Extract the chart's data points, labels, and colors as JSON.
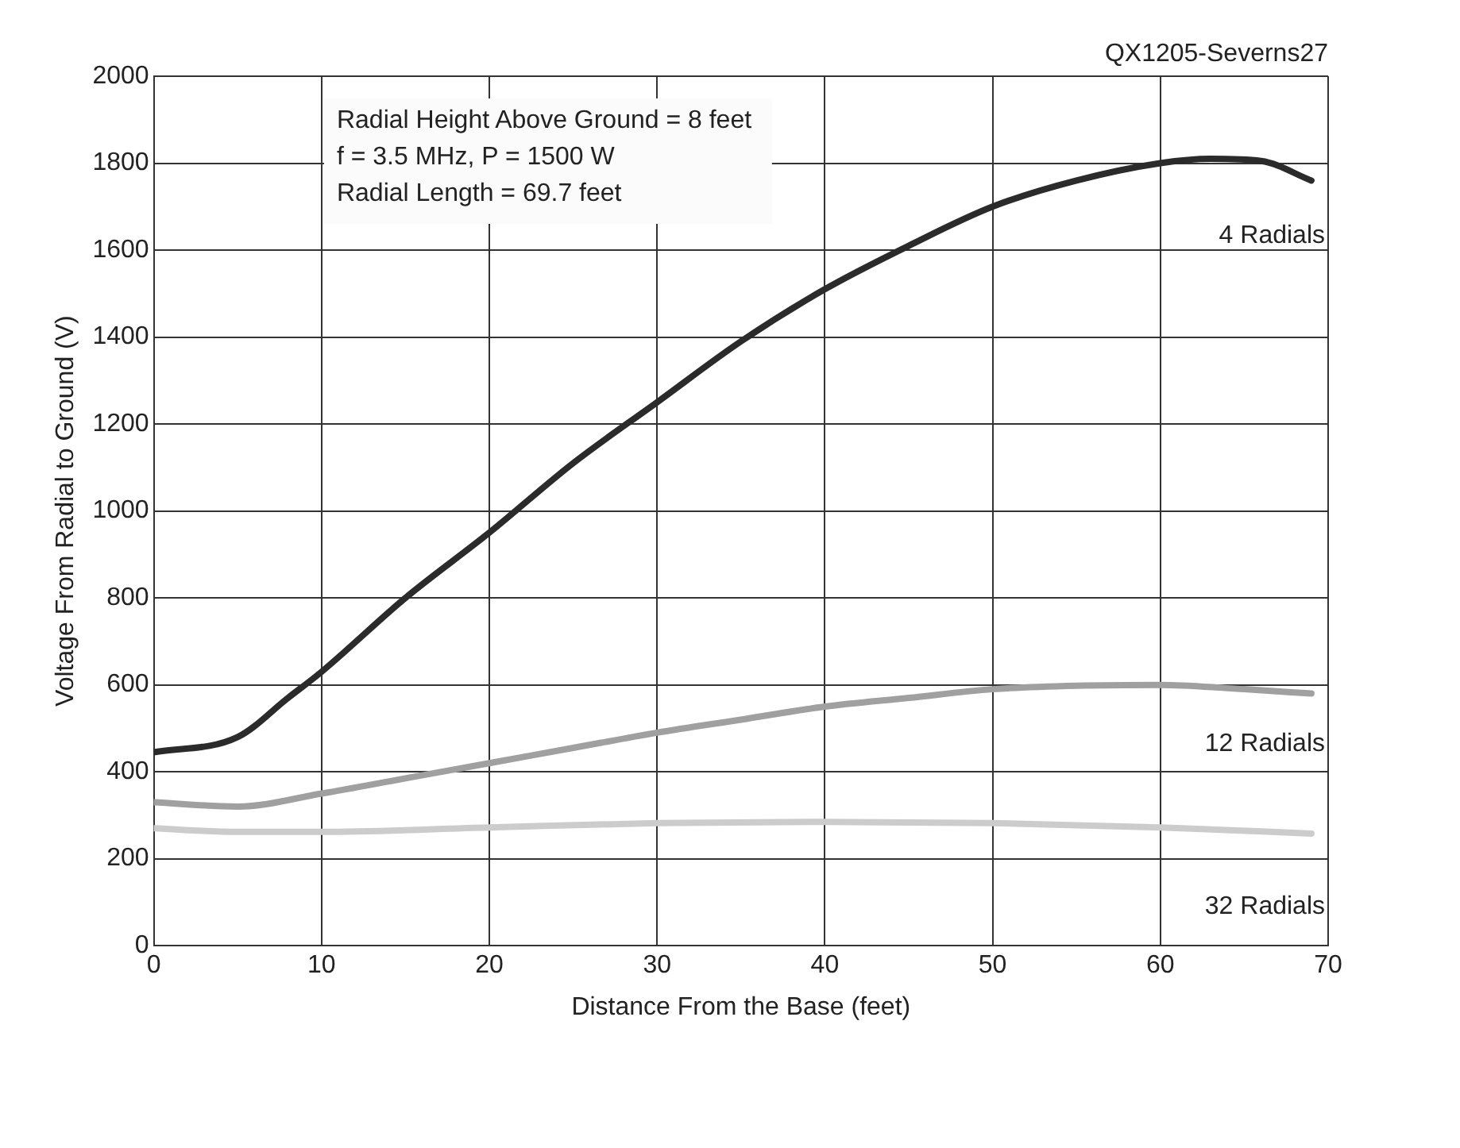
{
  "chart_data": {
    "type": "line",
    "xlabel": "Distance From the Base (feet)",
    "ylabel": "Voltage From Radial to Ground (V)",
    "annotations": [
      "QX1205-Severns27",
      "Radial Height Above Ground = 8 feet",
      "f = 3.5 MHz, P = 1500 W",
      "Radial Length = 69.7 feet"
    ],
    "series": [
      {
        "name": "4 Radials",
        "color": "#2b2b2b",
        "x": [
          0,
          5,
          8,
          10,
          15,
          20,
          25,
          30,
          35,
          40,
          45,
          50,
          55,
          60,
          63,
          66,
          69
        ],
        "values": [
          445,
          480,
          570,
          630,
          800,
          950,
          1110,
          1250,
          1390,
          1510,
          1610,
          1700,
          1760,
          1800,
          1810,
          1805,
          1760
        ]
      },
      {
        "name": "12 Radials",
        "color": "#a0a0a0",
        "x": [
          0,
          5,
          10,
          15,
          20,
          25,
          30,
          35,
          40,
          45,
          50,
          55,
          60,
          65,
          69
        ],
        "values": [
          330,
          320,
          350,
          385,
          420,
          455,
          490,
          520,
          550,
          570,
          590,
          598,
          600,
          590,
          580
        ]
      },
      {
        "name": "32 Radials",
        "color": "#cccccc",
        "x": [
          0,
          5,
          10,
          20,
          30,
          40,
          50,
          60,
          69
        ],
        "values": [
          270,
          262,
          262,
          272,
          282,
          285,
          282,
          272,
          258
        ]
      }
    ],
    "xlim": [
      0,
      70
    ],
    "xticks": [
      0,
      10,
      20,
      30,
      40,
      50,
      60,
      70
    ],
    "ylim": [
      0,
      2000
    ],
    "yticks": [
      0,
      200,
      400,
      600,
      800,
      1000,
      1200,
      1400,
      1600,
      1800,
      2000
    ],
    "grid": true,
    "legend": false,
    "marker": "none",
    "line_style": "solid"
  }
}
